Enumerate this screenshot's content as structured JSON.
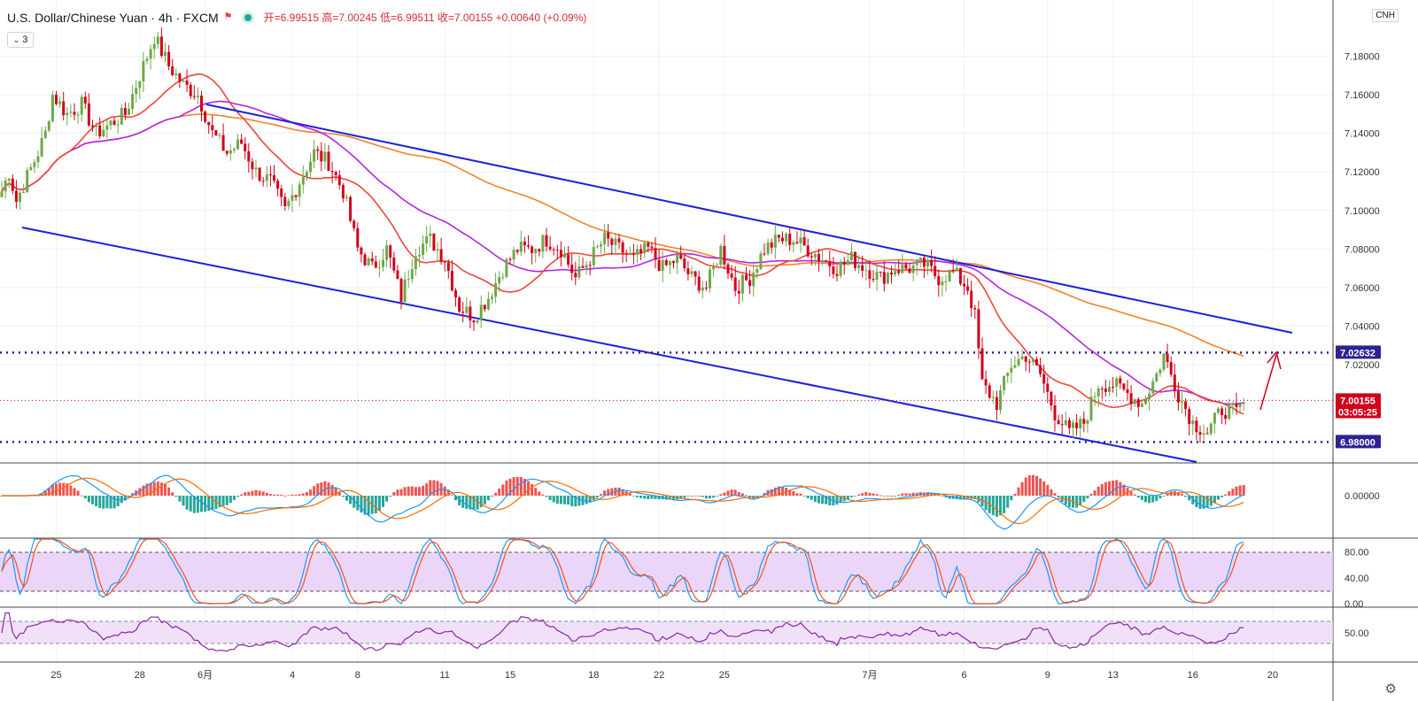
{
  "header": {
    "symbol": "U.S. Dollar/Chinese Yuan · 4h · FXCM",
    "ohlc": "开=6.99515 高=7.00245 低=6.99511 收=7.00155 +0.00640 (+0.09%)",
    "indicator_count": "3",
    "exchange_badge": "CNH"
  },
  "colors": {
    "up": "#6ea84a",
    "down": "#d0021b",
    "channel": "#1a1fdb",
    "ma_red": "#f0463a",
    "ma_purple": "#b526e0",
    "ma_orange": "#f4822a",
    "level": "#2d2390"
  },
  "chart_data": [
    {
      "type": "candlestick",
      "title": "",
      "x_ticks": [
        "25",
        "28",
        "6月",
        "4",
        "8",
        "11",
        "15",
        "18",
        "22",
        "25",
        "7月",
        "6",
        "9",
        "13",
        "16",
        "20"
      ],
      "y_ticks": [
        "7.18000",
        "7.16000",
        "7.14000",
        "7.12000",
        "7.10000",
        "7.08000",
        "7.06000",
        "7.04000",
        "7.02000"
      ],
      "ylim": [
        6.97,
        7.2
      ],
      "price_labels": [
        {
          "label": "7.02632",
          "value": 7.02632
        },
        {
          "label": "7.00155",
          "value": 7.00155
        },
        {
          "label": "03:05:25",
          "value": 6.99555
        },
        {
          "label": "6.98000",
          "value": 6.98
        }
      ],
      "horizontal_levels": [
        7.02632,
        6.98
      ],
      "last_price": 7.00155,
      "anchors": [
        [
          0,
          7.11
        ],
        [
          2,
          7.12
        ],
        [
          4,
          7.105
        ],
        [
          10,
          7.13
        ],
        [
          12,
          7.14
        ],
        [
          14,
          7.16
        ],
        [
          18,
          7.15
        ],
        [
          22,
          7.155
        ],
        [
          26,
          7.14
        ],
        [
          30,
          7.145
        ],
        [
          34,
          7.15
        ],
        [
          38,
          7.17
        ],
        [
          42,
          7.19
        ],
        [
          46,
          7.175
        ],
        [
          50,
          7.165
        ],
        [
          54,
          7.16
        ],
        [
          58,
          7.14
        ],
        [
          62,
          7.13
        ],
        [
          66,
          7.135
        ],
        [
          70,
          7.12
        ],
        [
          74,
          7.115
        ],
        [
          78,
          7.1
        ],
        [
          82,
          7.115
        ],
        [
          86,
          7.13
        ],
        [
          90,
          7.125
        ],
        [
          94,
          7.11
        ],
        [
          98,
          7.08
        ],
        [
          102,
          7.07
        ],
        [
          106,
          7.08
        ],
        [
          110,
          7.055
        ],
        [
          114,
          7.08
        ],
        [
          118,
          7.085
        ],
        [
          122,
          7.075
        ],
        [
          126,
          7.05
        ],
        [
          130,
          7.045
        ],
        [
          134,
          7.055
        ],
        [
          138,
          7.07
        ],
        [
          142,
          7.08
        ],
        [
          146,
          7.08
        ],
        [
          150,
          7.085
        ],
        [
          154,
          7.08
        ],
        [
          158,
          7.065
        ],
        [
          162,
          7.075
        ],
        [
          166,
          7.085
        ],
        [
          170,
          7.08
        ],
        [
          174,
          7.075
        ],
        [
          178,
          7.08
        ],
        [
          182,
          7.07
        ],
        [
          186,
          7.075
        ],
        [
          190,
          7.065
        ],
        [
          194,
          7.06
        ],
        [
          198,
          7.08
        ],
        [
          202,
          7.06
        ],
        [
          206,
          7.065
        ],
        [
          210,
          7.08
        ],
        [
          214,
          7.085
        ],
        [
          218,
          7.085
        ],
        [
          222,
          7.08
        ],
        [
          226,
          7.075
        ],
        [
          230,
          7.07
        ],
        [
          234,
          7.075
        ],
        [
          238,
          7.07
        ],
        [
          242,
          7.065
        ],
        [
          246,
          7.07
        ],
        [
          250,
          7.07
        ],
        [
          254,
          7.072
        ],
        [
          258,
          7.065
        ],
        [
          262,
          7.068
        ],
        [
          266,
          7.06
        ],
        [
          268,
          7.045
        ],
        [
          270,
          7.01
        ],
        [
          274,
          7.0
        ],
        [
          278,
          7.02
        ],
        [
          282,
          7.025
        ],
        [
          286,
          7.015
        ],
        [
          290,
          6.995
        ],
        [
          294,
          6.985
        ],
        [
          298,
          6.99
        ],
        [
          302,
          7.01
        ],
        [
          306,
          7.01
        ],
        [
          310,
          7.005
        ],
        [
          314,
          7.0
        ],
        [
          318,
          7.015
        ],
        [
          320,
          7.025
        ],
        [
          324,
          7.005
        ],
        [
          328,
          6.99
        ],
        [
          332,
          6.985
        ],
        [
          336,
          6.997
        ],
        [
          340,
          6.995
        ],
        [
          342,
          7.0
        ]
      ],
      "indicator_ticks": [
        {
          "panel": "macd",
          "ticks": [
            "0.00000"
          ]
        },
        {
          "panel": "stoch",
          "ticks": [
            "80.00",
            "40.00",
            "0.00"
          ]
        },
        {
          "panel": "rsi",
          "ticks": [
            "50.00"
          ]
        }
      ]
    }
  ]
}
